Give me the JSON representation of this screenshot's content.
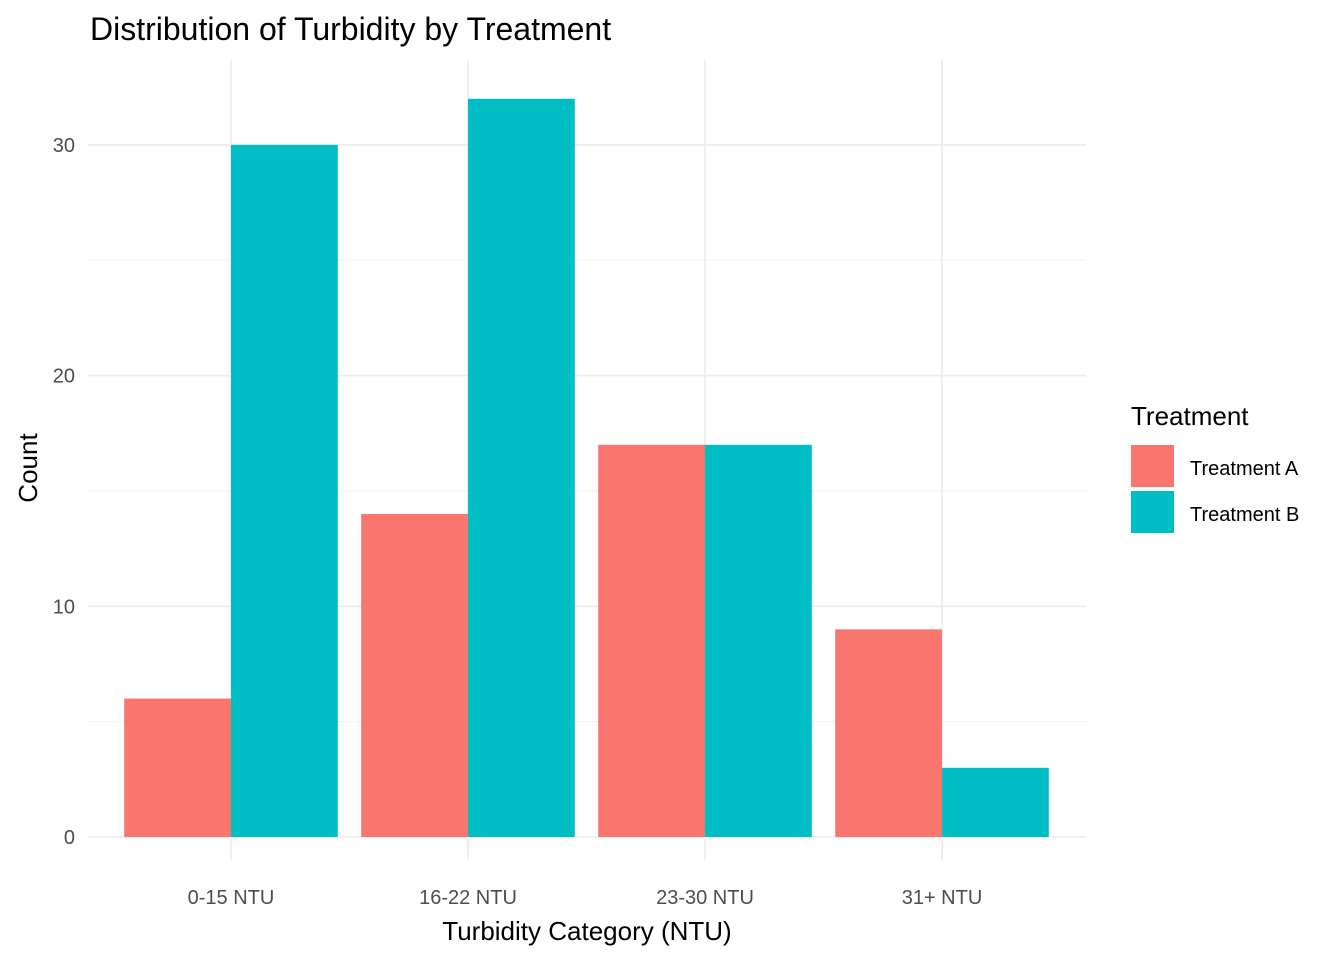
{
  "chart_data": {
    "type": "bar",
    "title": "Distribution of Turbidity by Treatment",
    "xlabel": "Turbidity Category (NTU)",
    "ylabel": "Count",
    "categories": [
      "0-15 NTU",
      "16-22 NTU",
      "23-30 NTU",
      "31+ NTU"
    ],
    "series": [
      {
        "name": "Treatment A",
        "values": [
          6,
          14,
          17,
          9
        ],
        "color": "#F8766D"
      },
      {
        "name": "Treatment B",
        "values": [
          30,
          32,
          17,
          3
        ],
        "color": "#00BFC4"
      }
    ],
    "ylim": [
      0,
      33.6
    ],
    "yticks": [
      0,
      10,
      20,
      30
    ],
    "grid": true,
    "legend": {
      "title": "Treatment",
      "position": "right"
    }
  }
}
